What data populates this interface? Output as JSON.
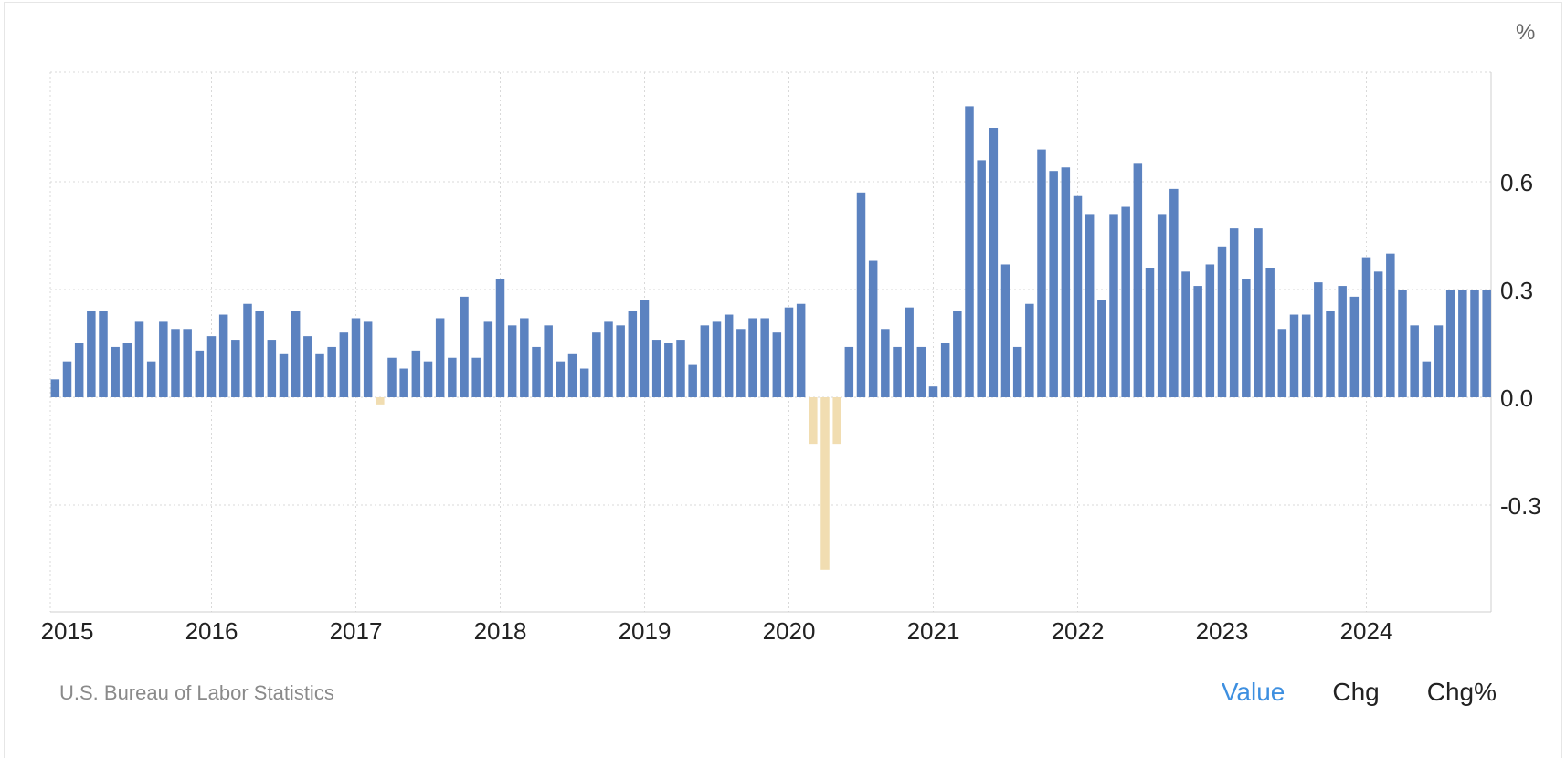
{
  "chart_data": {
    "type": "bar",
    "unit_label": "%",
    "y_ticks": [
      "0.6",
      "0.3",
      "0.0",
      "-0.3"
    ],
    "y_tick_values": [
      0.6,
      0.3,
      0.0,
      -0.3
    ],
    "ylim": [
      -0.6,
      0.9
    ],
    "x_tick_labels": [
      "2015",
      "2016",
      "2017",
      "2018",
      "2019",
      "2020",
      "2021",
      "2022",
      "2023",
      "2024"
    ],
    "grid": true,
    "y_axis_side": "right",
    "start_month": "2014-12",
    "values": [
      0.05,
      0.1,
      0.15,
      0.24,
      0.24,
      0.14,
      0.15,
      0.21,
      0.1,
      0.21,
      0.19,
      0.19,
      0.13,
      0.17,
      0.23,
      0.16,
      0.26,
      0.24,
      0.16,
      0.12,
      0.24,
      0.17,
      0.12,
      0.14,
      0.18,
      0.22,
      0.21,
      -0.02,
      0.11,
      0.08,
      0.13,
      0.1,
      0.22,
      0.11,
      0.28,
      0.11,
      0.21,
      0.33,
      0.2,
      0.22,
      0.14,
      0.2,
      0.1,
      0.12,
      0.08,
      0.18,
      0.21,
      0.2,
      0.24,
      0.27,
      0.16,
      0.15,
      0.16,
      0.09,
      0.2,
      0.21,
      0.23,
      0.19,
      0.22,
      0.22,
      0.18,
      0.25,
      0.26,
      -0.13,
      -0.48,
      -0.13,
      0.14,
      0.57,
      0.38,
      0.19,
      0.14,
      0.25,
      0.14,
      0.03,
      0.15,
      0.24,
      0.81,
      0.66,
      0.75,
      0.37,
      0.14,
      0.26,
      0.69,
      0.63,
      0.64,
      0.56,
      0.51,
      0.27,
      0.51,
      0.53,
      0.65,
      0.36,
      0.51,
      0.58,
      0.35,
      0.31,
      0.37,
      0.42,
      0.47,
      0.33,
      0.47,
      0.36,
      0.19,
      0.23,
      0.23,
      0.32,
      0.24,
      0.31,
      0.28,
      0.39,
      0.35,
      0.4,
      0.3,
      0.2,
      0.1,
      0.2,
      0.3,
      0.3,
      0.3,
      0.3
    ],
    "positive_color": "#5b82c0",
    "negative_color": "#f1ddb1"
  },
  "footer": {
    "source": "U.S. Bureau of Labor Statistics",
    "tabs": [
      {
        "label": "Value",
        "active": true
      },
      {
        "label": "Chg",
        "active": false
      },
      {
        "label": "Chg%",
        "active": false
      }
    ]
  },
  "colors": {
    "active_tab": "#3d8fe0",
    "grid": "#d9d9d9"
  }
}
